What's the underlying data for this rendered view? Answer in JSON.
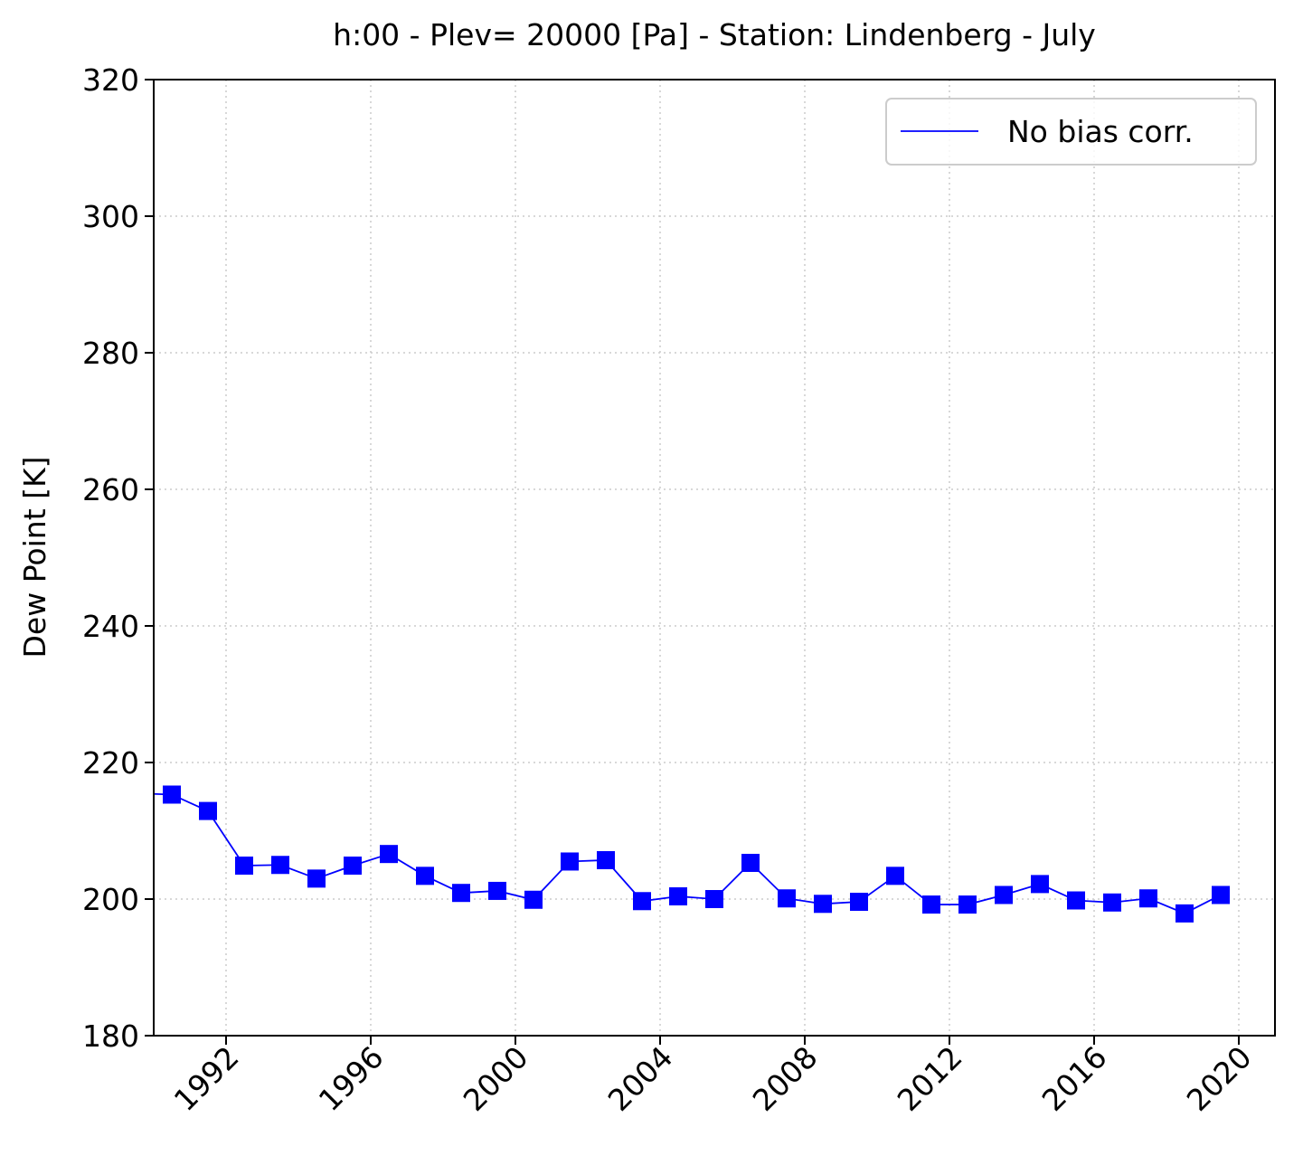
{
  "chart_data": {
    "type": "line",
    "title": "h:00 - Plev= 20000 [Pa] - Station: Lindenberg - July",
    "xlabel": "",
    "ylabel": "Dew Point [K]",
    "xlim": [
      1990.0,
      2021.0
    ],
    "ylim": [
      180,
      320
    ],
    "x_ticks": [
      1992,
      1996,
      2000,
      2004,
      2008,
      2012,
      2016,
      2020
    ],
    "x_tick_labels": [
      "1992",
      "1996",
      "2000",
      "2004",
      "2008",
      "2012",
      "2016",
      "2020"
    ],
    "y_ticks": [
      180,
      200,
      220,
      240,
      260,
      280,
      300,
      320
    ],
    "y_tick_labels": [
      "180",
      "200",
      "220",
      "240",
      "260",
      "280",
      "300",
      "320"
    ],
    "grid": true,
    "legend_position": "top-right",
    "series": [
      {
        "name": "No bias corr.",
        "color": "#0000ff",
        "marker": "square",
        "lead_in": {
          "x": 1990.0,
          "y": 215.4
        },
        "x": [
          1990.5,
          1991.5,
          1992.5,
          1993.5,
          1994.5,
          1995.5,
          1996.5,
          1997.5,
          1998.5,
          1999.5,
          2000.5,
          2001.5,
          2002.5,
          2003.5,
          2004.5,
          2005.5,
          2006.5,
          2007.5,
          2008.5,
          2009.5,
          2010.5,
          2011.5,
          2012.5,
          2013.5,
          2014.5,
          2015.5,
          2016.5,
          2017.5,
          2018.5,
          2019.5
        ],
        "y": [
          215.3,
          212.9,
          204.9,
          205.0,
          203.0,
          204.9,
          206.6,
          203.4,
          200.9,
          201.2,
          199.9,
          205.5,
          205.7,
          199.7,
          200.4,
          200.0,
          205.3,
          200.1,
          199.3,
          199.6,
          203.4,
          199.2,
          199.2,
          200.6,
          202.2,
          199.8,
          199.5,
          200.1,
          197.9,
          200.6
        ]
      }
    ]
  }
}
